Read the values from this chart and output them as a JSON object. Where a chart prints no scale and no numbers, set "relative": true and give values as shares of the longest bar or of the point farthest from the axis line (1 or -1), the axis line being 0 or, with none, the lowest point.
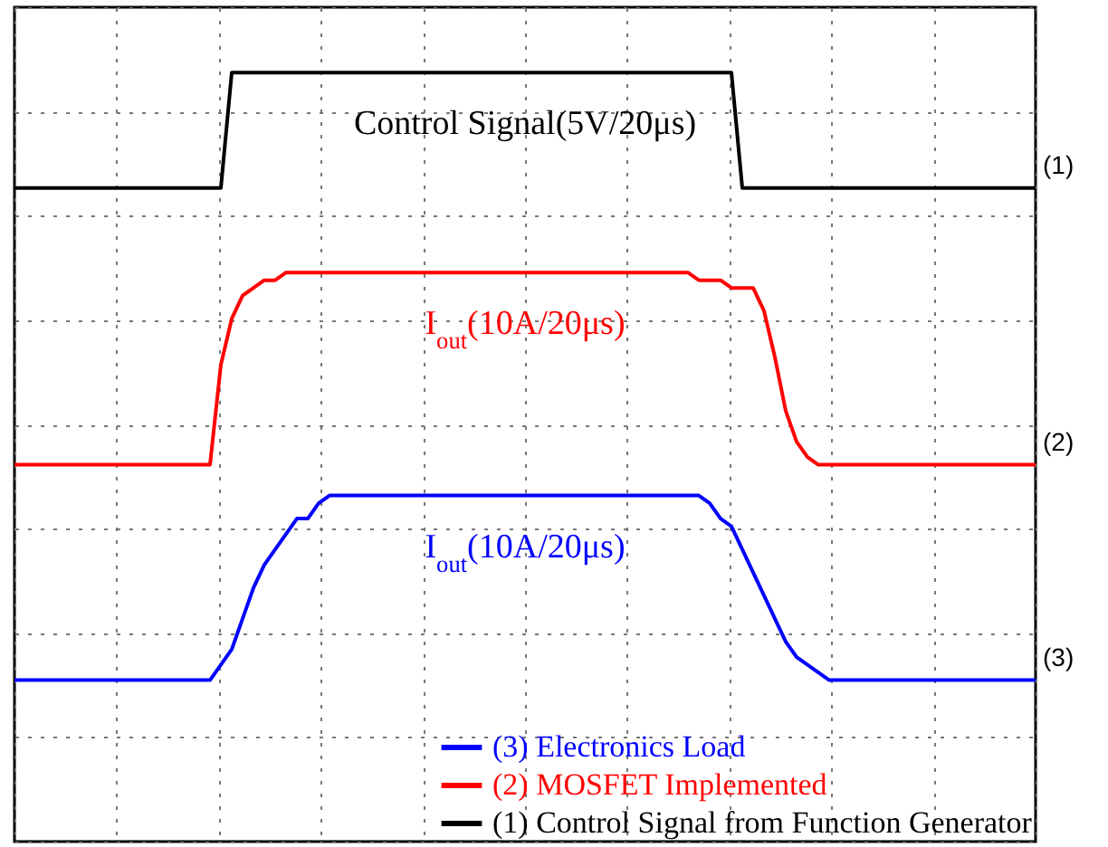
{
  "chart_data": {
    "type": "line",
    "relative": true,
    "grid": true,
    "legend": "bottom right",
    "tick_labels": false,
    "categories": [
      null,
      null,
      null,
      null,
      null,
      null,
      null,
      null,
      null,
      null,
      null,
      null,
      null,
      null,
      null,
      null,
      null,
      null,
      null,
      null,
      null,
      null,
      null,
      null,
      null,
      null,
      null,
      null,
      null,
      null,
      null,
      null,
      null,
      null,
      null,
      null,
      null,
      null,
      null,
      null,
      null,
      null,
      null,
      null,
      null,
      null,
      null,
      null,
      null,
      null,
      null,
      null,
      null,
      null,
      null,
      null,
      null,
      null,
      null,
      null,
      null,
      null,
      null,
      null,
      null,
      null,
      null,
      null,
      null,
      null,
      null,
      null,
      null,
      null,
      null,
      null,
      null,
      null,
      null,
      null,
      null,
      null,
      null,
      null,
      null,
      null,
      null,
      null,
      null,
      null,
      null,
      null,
      null,
      null,
      null
    ],
    "series": [
      {
        "name": "(1) Control Signal from Function Generator",
        "color": "#000000",
        "values": [
          0.85,
          0.85,
          0.85,
          0.85,
          0.85,
          0.85,
          0.85,
          0.85,
          0.85,
          0.85,
          0.85,
          0.85,
          0.85,
          0.85,
          0.85,
          0.85,
          0.85,
          0.85,
          0.85,
          0.85,
          1,
          1,
          1,
          1,
          1,
          1,
          1,
          1,
          1,
          1,
          1,
          1,
          1,
          1,
          1,
          1,
          1,
          1,
          1,
          1,
          1,
          1,
          1,
          1,
          1,
          1,
          1,
          1,
          1,
          1,
          1,
          1,
          1,
          1,
          1,
          1,
          1,
          1,
          1,
          1,
          1,
          1,
          1,
          1,
          1,
          1,
          1,
          0.85,
          0.85,
          0.85,
          0.85,
          0.85,
          0.85,
          0.85,
          0.85,
          0.85,
          0.85,
          0.85,
          0.85,
          0.85,
          0.85,
          0.85,
          0.85,
          0.85,
          0.85,
          0.85,
          0.85,
          0.85,
          0.85,
          0.85,
          0.85,
          0.85,
          0.85,
          0.85,
          0.85
        ]
      },
      {
        "name": "(2) MOSFET Implemented",
        "color": "#ff0000",
        "values": [
          0.49,
          0.49,
          0.49,
          0.49,
          0.49,
          0.49,
          0.49,
          0.49,
          0.49,
          0.49,
          0.49,
          0.49,
          0.49,
          0.49,
          0.49,
          0.49,
          0.49,
          0.49,
          0.49,
          0.62,
          0.68,
          0.71,
          0.72,
          0.73,
          0.73,
          0.74,
          0.74,
          0.74,
          0.74,
          0.74,
          0.74,
          0.74,
          0.74,
          0.74,
          0.74,
          0.74,
          0.74,
          0.74,
          0.74,
          0.74,
          0.74,
          0.74,
          0.74,
          0.74,
          0.74,
          0.74,
          0.74,
          0.74,
          0.74,
          0.74,
          0.74,
          0.74,
          0.74,
          0.74,
          0.74,
          0.74,
          0.74,
          0.74,
          0.74,
          0.74,
          0.74,
          0.74,
          0.74,
          0.73,
          0.73,
          0.73,
          0.72,
          0.72,
          0.72,
          0.69,
          0.63,
          0.56,
          0.52,
          0.5,
          0.49,
          0.49,
          0.49,
          0.49,
          0.49,
          0.49,
          0.49,
          0.49,
          0.49,
          0.49,
          0.49,
          0.49,
          0.49,
          0.49,
          0.49,
          0.49,
          0.49,
          0.49,
          0.49,
          0.49,
          0.49
        ]
      },
      {
        "name": "(3) Electronics Load",
        "color": "#0000ff",
        "values": [
          0.21,
          0.21,
          0.21,
          0.21,
          0.21,
          0.21,
          0.21,
          0.21,
          0.21,
          0.21,
          0.21,
          0.21,
          0.21,
          0.21,
          0.21,
          0.21,
          0.21,
          0.21,
          0.21,
          0.23,
          0.25,
          0.29,
          0.33,
          0.36,
          0.38,
          0.4,
          0.42,
          0.42,
          0.44,
          0.45,
          0.45,
          0.45,
          0.45,
          0.45,
          0.45,
          0.45,
          0.45,
          0.45,
          0.45,
          0.45,
          0.45,
          0.45,
          0.45,
          0.45,
          0.45,
          0.45,
          0.45,
          0.45,
          0.45,
          0.45,
          0.45,
          0.45,
          0.45,
          0.45,
          0.45,
          0.45,
          0.45,
          0.45,
          0.45,
          0.45,
          0.45,
          0.45,
          0.45,
          0.45,
          0.44,
          0.42,
          0.41,
          0.38,
          0.35,
          0.32,
          0.29,
          0.26,
          0.24,
          0.23,
          0.22,
          0.21,
          0.21,
          0.21,
          0.21,
          0.21,
          0.21,
          0.21,
          0.21,
          0.21,
          0.21,
          0.21,
          0.21,
          0.21,
          0.21,
          0.21,
          0.21,
          0.21,
          0.21,
          0.21,
          0.21
        ]
      }
    ],
    "line_style": "solid",
    "annotations": [
      "Control Signal(5V/20μs)",
      "I$_{out}$(10A/20μs)",
      "I$_{out}$(10A/20μs)",
      "(1)",
      "(2)",
      "(3)"
    ]
  }
}
